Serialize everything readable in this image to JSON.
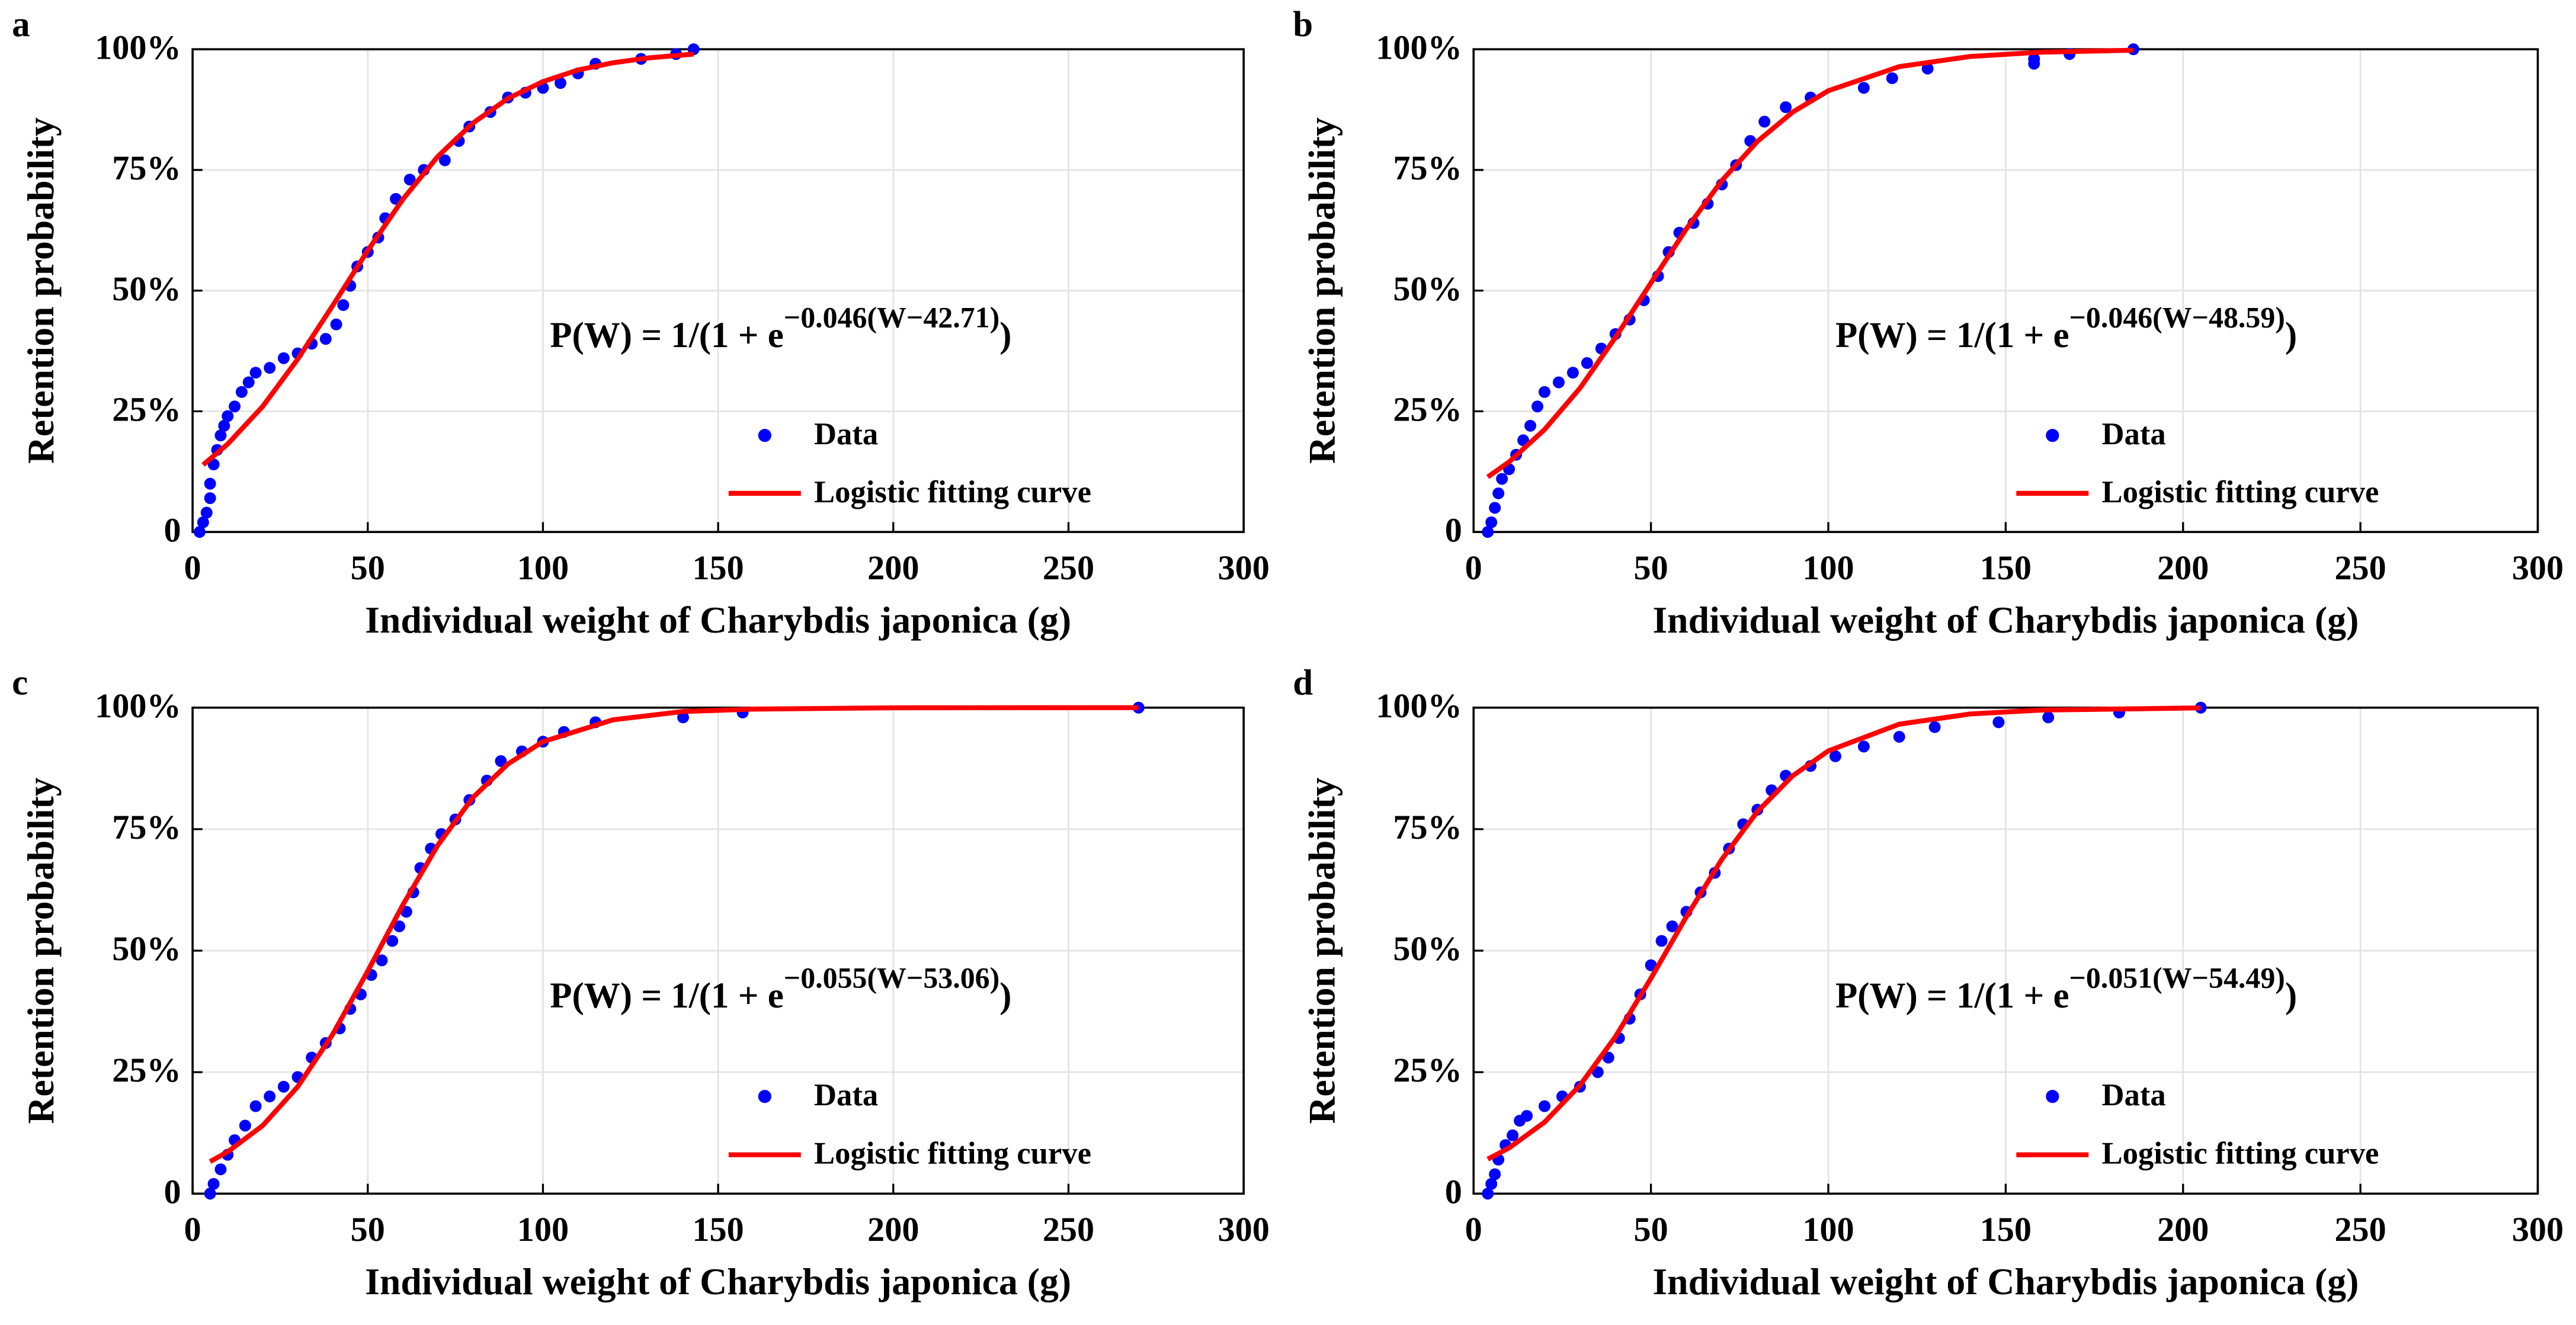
{
  "chart_data": [
    {
      "type": "scatter",
      "panel_label": "a",
      "xlabel": "Individual weight of Charybdis japonica (g)",
      "ylabel": "Retention probability",
      "equation": {
        "text": "P(W) = 1/(1 + e",
        "exponent": "−0.046(W−42.71)",
        "close": ")"
      },
      "xlim": [
        0,
        300
      ],
      "ylim": [
        0,
        100
      ],
      "xticks": [
        0,
        50,
        100,
        150,
        200,
        250,
        300
      ],
      "yticks": [
        0,
        {
          "value": 25,
          "label": "25%"
        },
        {
          "value": 50,
          "label": "50%"
        },
        {
          "value": 75,
          "label": "75%"
        },
        {
          "value": 100,
          "label": "100%"
        }
      ],
      "grid": true,
      "legend": "lower right",
      "series": [
        {
          "name": "Data",
          "color": "#0000ff",
          "type": "scatter",
          "x": [
            2,
            3,
            4,
            5,
            5,
            6,
            7,
            8,
            9,
            10,
            12,
            14,
            16,
            18,
            22,
            26,
            30,
            34,
            38,
            41,
            43,
            45,
            47,
            50,
            53,
            55,
            58,
            62,
            66,
            72,
            76,
            79,
            85,
            90,
            95,
            100,
            105,
            110,
            115,
            128,
            138,
            143
          ],
          "values": [
            0,
            2,
            4,
            7,
            10,
            14,
            17,
            20,
            22,
            24,
            26,
            29,
            31,
            33,
            34,
            36,
            37,
            39,
            40,
            43,
            47,
            51,
            55,
            58,
            61,
            65,
            69,
            73,
            75,
            77,
            81,
            84,
            87,
            90,
            91,
            92,
            93,
            95,
            97,
            98,
            99,
            100
          ]
        },
        {
          "name": "Logistic fitting curve",
          "color": "#ff0000",
          "type": "line",
          "x": [
            3,
            10,
            20,
            30,
            40,
            50,
            60,
            70,
            80,
            90,
            100,
            110,
            120,
            130,
            143
          ],
          "values": [
            13.9,
            18.2,
            26.0,
            35.8,
            46.9,
            58.3,
            68.9,
            77.8,
            84.7,
            89.8,
            93.3,
            95.7,
            97.2,
            98.2,
            99.0
          ]
        }
      ]
    },
    {
      "type": "scatter",
      "panel_label": "b",
      "xlabel": "Individual weight of Charybdis japonica (g)",
      "ylabel": "Retention probability",
      "equation": {
        "text": "P(W) = 1/(1 + e",
        "exponent": "−0.046(W−48.59)",
        "close": ")"
      },
      "xlim": [
        0,
        300
      ],
      "ylim": [
        0,
        100
      ],
      "xticks": [
        0,
        50,
        100,
        150,
        200,
        250,
        300
      ],
      "yticks": [
        0,
        {
          "value": 25,
          "label": "25%"
        },
        {
          "value": 50,
          "label": "50%"
        },
        {
          "value": 75,
          "label": "75%"
        },
        {
          "value": 100,
          "label": "100%"
        }
      ],
      "grid": true,
      "legend": "lower right",
      "series": [
        {
          "name": "Data",
          "color": "#0000ff",
          "type": "scatter",
          "x": [
            4,
            5,
            6,
            7,
            8,
            10,
            12,
            14,
            16,
            18,
            20,
            24,
            28,
            32,
            36,
            40,
            44,
            48,
            52,
            55,
            58,
            62,
            66,
            70,
            74,
            78,
            82,
            88,
            95,
            110,
            118,
            128,
            158,
            158,
            168,
            186
          ],
          "values": [
            0,
            2,
            5,
            8,
            11,
            13,
            16,
            19,
            22,
            26,
            29,
            31,
            33,
            35,
            38,
            41,
            44,
            48,
            53,
            58,
            62,
            64,
            68,
            72,
            76,
            81,
            85,
            88,
            90,
            92,
            94,
            96,
            97,
            98,
            99,
            100
          ]
        },
        {
          "name": "Logistic fitting curve",
          "color": "#ff0000",
          "type": "line",
          "x": [
            4,
            10,
            20,
            30,
            40,
            50,
            60,
            70,
            80,
            90,
            100,
            120,
            140,
            160,
            186
          ],
          "values": [
            11.4,
            14.5,
            21.2,
            29.8,
            40.3,
            51.6,
            62.8,
            72.8,
            80.9,
            87.0,
            91.4,
            96.4,
            98.5,
            99.4,
            99.8
          ]
        }
      ]
    },
    {
      "type": "scatter",
      "panel_label": "c",
      "xlabel": "Individual weight of Charybdis japonica (g)",
      "ylabel": "Retention probability",
      "equation": {
        "text": "P(W) = 1/(1 + e",
        "exponent": "−0.055(W−53.06)",
        "close": ")"
      },
      "xlim": [
        0,
        300
      ],
      "ylim": [
        0,
        100
      ],
      "xticks": [
        0,
        50,
        100,
        150,
        200,
        250,
        300
      ],
      "yticks": [
        0,
        {
          "value": 25,
          "label": "25%"
        },
        {
          "value": 50,
          "label": "50%"
        },
        {
          "value": 75,
          "label": "75%"
        },
        {
          "value": 100,
          "label": "100%"
        }
      ],
      "grid": true,
      "legend": "lower right",
      "series": [
        {
          "name": "Data",
          "color": "#0000ff",
          "type": "scatter",
          "x": [
            5,
            6,
            8,
            10,
            12,
            15,
            18,
            22,
            26,
            30,
            34,
            38,
            42,
            45,
            48,
            51,
            54,
            57,
            59,
            61,
            63,
            65,
            68,
            71,
            75,
            79,
            84,
            88,
            94,
            100,
            106,
            115,
            140,
            157,
            270
          ],
          "values": [
            0,
            2,
            5,
            8,
            11,
            14,
            18,
            20,
            22,
            24,
            28,
            31,
            34,
            38,
            41,
            45,
            48,
            52,
            55,
            58,
            62,
            67,
            71,
            74,
            77,
            81,
            85,
            89,
            91,
            93,
            95,
            97,
            98,
            99,
            100
          ]
        },
        {
          "name": "Logistic fitting curve",
          "color": "#ff0000",
          "type": "line",
          "x": [
            5,
            10,
            20,
            30,
            40,
            50,
            60,
            70,
            80,
            90,
            100,
            120,
            140,
            160,
            200,
            270
          ],
          "values": [
            6.6,
            8.6,
            14.0,
            22.0,
            32.8,
            45.8,
            59.4,
            71.7,
            81.5,
            88.4,
            93.0,
            97.5,
            99.2,
            99.7,
            99.97,
            100.0
          ]
        }
      ]
    },
    {
      "type": "scatter",
      "panel_label": "d",
      "xlabel": "Individual weight of Charybdis japonica (g)",
      "ylabel": "Retention probability",
      "equation": {
        "text": "P(W) = 1/(1 + e",
        "exponent": "−0.051(W−54.49)",
        "close": ")"
      },
      "xlim": [
        0,
        300
      ],
      "ylim": [
        0,
        100
      ],
      "xticks": [
        0,
        50,
        100,
        150,
        200,
        250,
        300
      ],
      "yticks": [
        0,
        {
          "value": 25,
          "label": "25%"
        },
        {
          "value": 50,
          "label": "50%"
        },
        {
          "value": 75,
          "label": "75%"
        },
        {
          "value": 100,
          "label": "100%"
        }
      ],
      "grid": true,
      "legend": "lower right",
      "series": [
        {
          "name": "Data",
          "color": "#0000ff",
          "type": "scatter",
          "x": [
            4,
            5,
            6,
            7,
            9,
            11,
            13,
            15,
            20,
            25,
            30,
            35,
            38,
            41,
            44,
            47,
            50,
            53,
            56,
            60,
            64,
            68,
            72,
            76,
            80,
            84,
            88,
            95,
            102,
            110,
            120,
            130,
            148,
            162,
            182,
            205
          ],
          "values": [
            0,
            2,
            4,
            7,
            10,
            12,
            15,
            16,
            18,
            20,
            22,
            25,
            28,
            32,
            36,
            41,
            47,
            52,
            55,
            58,
            62,
            66,
            71,
            76,
            79,
            83,
            86,
            88,
            90,
            92,
            94,
            96,
            97,
            98,
            99,
            100
          ]
        },
        {
          "name": "Logistic fitting curve",
          "color": "#ff0000",
          "type": "line",
          "x": [
            4,
            10,
            20,
            30,
            40,
            50,
            60,
            70,
            80,
            90,
            100,
            120,
            140,
            160,
            205
          ],
          "values": [
            7.1,
            9.4,
            14.7,
            22.3,
            32.3,
            44.3,
            57.0,
            68.8,
            78.6,
            86.0,
            91.1,
            96.6,
            98.7,
            99.5,
            99.95
          ]
        }
      ]
    }
  ]
}
